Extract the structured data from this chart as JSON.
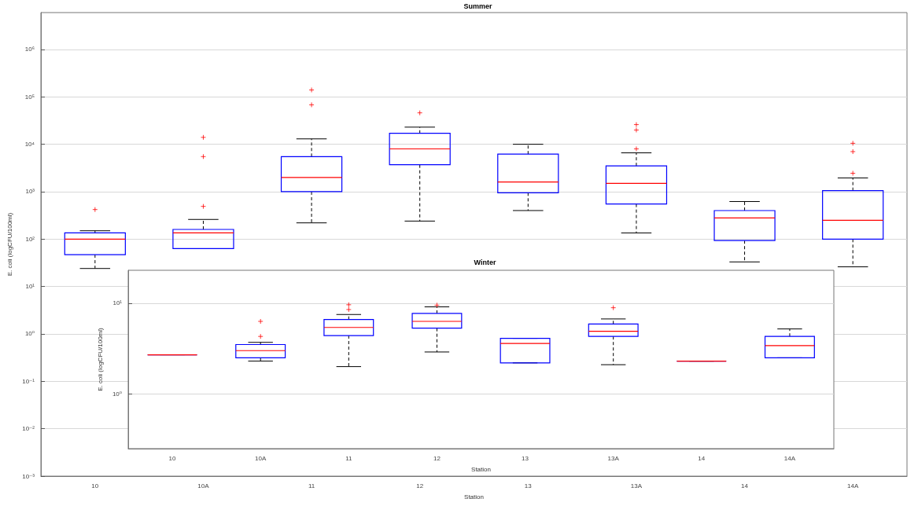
{
  "chart_data": [
    {
      "type": "box",
      "title": "Summer",
      "xlabel": "Station",
      "ylabel": "E. coli (logCFU/100ml)",
      "categories": [
        "10",
        "10A",
        "11",
        "12",
        "13",
        "13A",
        "14",
        "14A"
      ],
      "log": "y",
      "ylim": [
        0.001,
        6000000
      ],
      "yticks": [
        {
          "value": 0.001,
          "label": "10⁻³"
        },
        {
          "value": 0.01,
          "label": "10⁻²"
        },
        {
          "value": 0.1,
          "label": "10⁻¹"
        },
        {
          "value": 1,
          "label": "10⁰"
        },
        {
          "value": 10,
          "label": "10¹"
        },
        {
          "value": 100,
          "label": "10²"
        },
        {
          "value": 1000,
          "label": "10³"
        },
        {
          "value": 10000,
          "label": "10⁴"
        },
        {
          "value": 100000,
          "label": "10⁵"
        },
        {
          "value": 1000000,
          "label": "10⁶"
        }
      ],
      "grid": "y",
      "marker": "cross",
      "line_style": "dashed",
      "series": [
        {
          "color": "#0000ff",
          "boxes": [
            {
              "low": 24,
              "q1": 47,
              "median": 100,
              "q3": 135,
              "high": 150,
              "outliers": [
                420
              ]
            },
            {
              "low": null,
              "q1": 63,
              "median": 135,
              "q3": 160,
              "high": 260,
              "outliers": [
                490,
                5500,
                14000
              ]
            },
            {
              "low": 220,
              "q1": 1000,
              "median": 2000,
              "q3": 5500,
              "high": 13000,
              "outliers": [
                68000,
                140000
              ]
            },
            {
              "low": 240,
              "q1": 3700,
              "median": 8000,
              "q3": 17000,
              "high": 23000,
              "outliers": [
                46000
              ]
            },
            {
              "low": 400,
              "q1": 950,
              "median": 1600,
              "q3": 6200,
              "high": 10000
            },
            {
              "low": 135,
              "q1": 550,
              "median": 1500,
              "q3": 3500,
              "high": 6600,
              "outliers": [
                8000,
                20000,
                26000
              ]
            },
            {
              "low": 33,
              "q1": 93,
              "median": 280,
              "q3": 400,
              "high": 620
            },
            {
              "low": 26,
              "q1": 100,
              "median": 250,
              "q3": 1050,
              "high": 1950,
              "outliers": [
                2450,
                7000,
                10500
              ]
            }
          ]
        }
      ]
    },
    {
      "type": "box",
      "title": "Winter",
      "xlabel": "Station",
      "ylabel": "E. coli (logCFU/100ml)",
      "categories": [
        "10",
        "10A",
        "11",
        "12",
        "13",
        "13A",
        "14",
        "14A"
      ],
      "log": "y",
      "ylim": [
        0.25,
        23
      ],
      "yticks": [
        {
          "value": 1,
          "label": "10⁰"
        },
        {
          "value": 10,
          "label": "10¹"
        }
      ],
      "grid": "y",
      "marker": "cross",
      "line_style": "dashed",
      "series": [
        {
          "color": "#0000ff",
          "boxes": [
            {
              "low": 2.7,
              "q1": 2.7,
              "median": 2.7,
              "q3": 2.7,
              "high": 2.7
            },
            {
              "low": 2.3,
              "q1": 2.5,
              "median": 3.0,
              "q3": 3.5,
              "high": 3.7,
              "outliers": [
                4.3,
                6.3
              ]
            },
            {
              "low": 2.0,
              "q1": 4.4,
              "median": 5.4,
              "q3": 6.6,
              "high": 7.5,
              "outliers": [
                8.5,
                9.6
              ]
            },
            {
              "low": 2.9,
              "q1": 5.3,
              "median": 6.3,
              "q3": 7.7,
              "high": 9.1,
              "outliers": [
                9.5
              ]
            },
            {
              "low": 2.2,
              "q1": 2.2,
              "median": 3.6,
              "q3": 4.1,
              "high": 4.1
            },
            {
              "low": 2.1,
              "q1": 4.3,
              "median": 4.9,
              "q3": 5.9,
              "high": 6.7,
              "outliers": [
                8.9
              ]
            },
            {
              "low": 2.3,
              "q1": 2.3,
              "median": 2.3,
              "q3": 2.3,
              "high": 2.3
            },
            {
              "low": 2.5,
              "q1": 2.5,
              "median": 3.4,
              "q3": 4.3,
              "high": 5.2
            }
          ]
        }
      ]
    }
  ]
}
